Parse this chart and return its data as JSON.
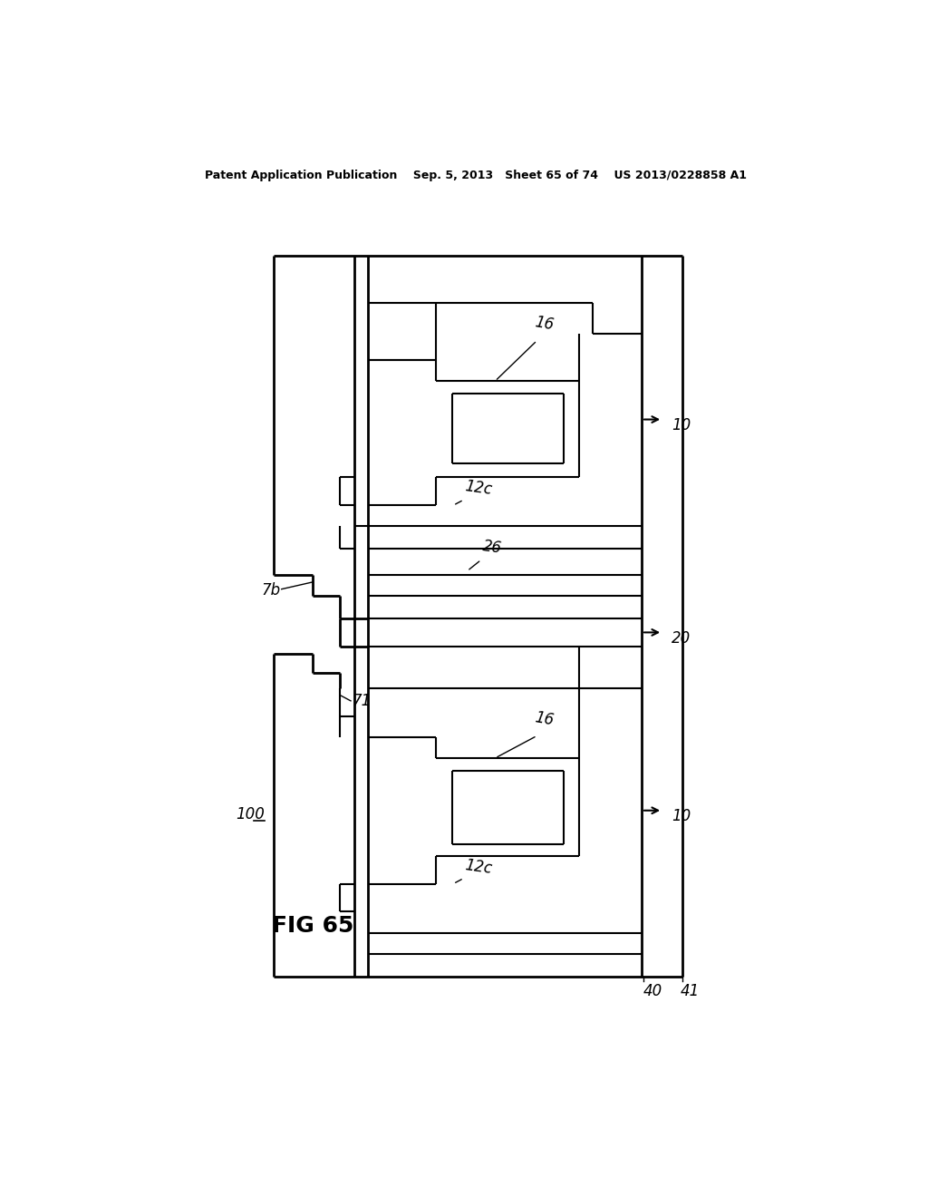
{
  "bg_color": "#ffffff",
  "line_color": "#000000",
  "header_text": "Patent Application Publication    Sep. 5, 2013   Sheet 65 of 74    US 2013/0228858 A1",
  "fig_label": "FIG 65",
  "component_label": "100",
  "labels": {
    "16_top": "16",
    "10_top": "10",
    "12c_top": "12c",
    "26": "26",
    "7b": "7b",
    "20": "20",
    "71": "71",
    "16_bot": "16",
    "10_bot": "10",
    "12c_bot": "12c",
    "40": "40",
    "41": "41"
  },
  "header_fontsize": 9,
  "label_fontsize": 12
}
